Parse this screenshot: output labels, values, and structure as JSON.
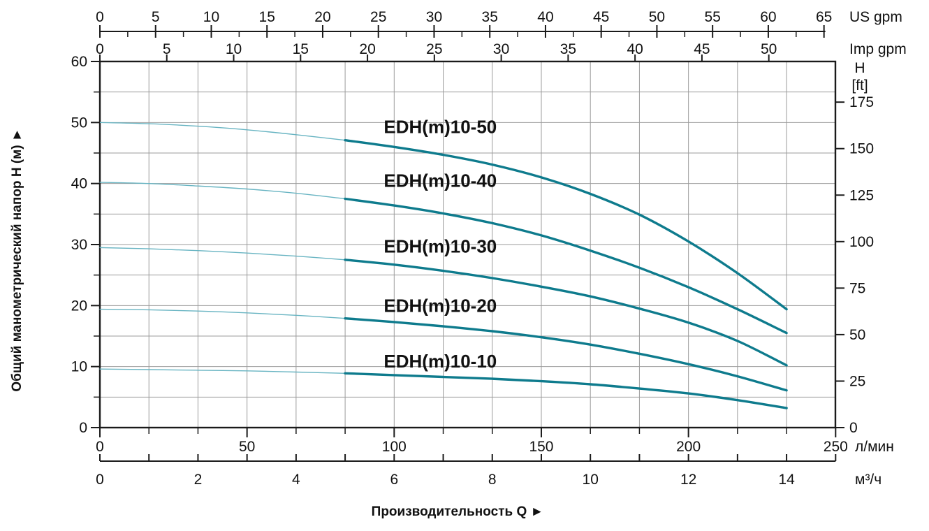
{
  "chart_data": {
    "type": "line",
    "title": "",
    "x_label": "Производительность Q",
    "x_label_arrow": "►",
    "y_label": "Общий манометрический напор H (м)",
    "y_label_arrow": "►",
    "x_m3h": [
      0,
      1,
      2,
      3,
      4,
      5,
      6,
      7,
      8,
      9,
      10,
      11,
      12,
      13,
      14
    ],
    "series": [
      {
        "name": "EDH(m)10-50",
        "label_h": 49.3,
        "values": [
          50,
          49.8,
          49.4,
          48.8,
          48.0,
          47.1,
          46.0,
          44.7,
          43.1,
          41.0,
          38.3,
          34.9,
          30.5,
          25.3,
          19.4
        ]
      },
      {
        "name": "EDH(m)10-40",
        "label_h": 40.5,
        "values": [
          40.2,
          40.0,
          39.6,
          39.1,
          38.4,
          37.5,
          36.4,
          35.1,
          33.5,
          31.5,
          29.0,
          26.2,
          23.0,
          19.4,
          15.5
        ]
      },
      {
        "name": "EDH(m)10-30",
        "label_h": 29.7,
        "values": [
          29.5,
          29.3,
          29.0,
          28.6,
          28.1,
          27.5,
          26.7,
          25.7,
          24.5,
          23.1,
          21.5,
          19.5,
          17.2,
          14.2,
          10.2
        ]
      },
      {
        "name": "EDH(m)10-20",
        "label_h": 20.0,
        "values": [
          19.4,
          19.3,
          19.1,
          18.8,
          18.4,
          17.9,
          17.3,
          16.6,
          15.8,
          14.8,
          13.6,
          12.1,
          10.4,
          8.4,
          6.1
        ]
      },
      {
        "name": "EDH(m)10-10",
        "label_h": 10.9,
        "values": [
          9.6,
          9.5,
          9.4,
          9.3,
          9.1,
          8.9,
          8.6,
          8.3,
          8.0,
          7.6,
          7.1,
          6.4,
          5.6,
          4.5,
          3.2
        ]
      }
    ],
    "label_x_m3h": 6.94,
    "thin_until_m3h": 5,
    "ylim": [
      0,
      60
    ],
    "xlim_lmin": [
      0,
      250
    ],
    "grid": {
      "x_step_m3h": 1,
      "y_step_m": 5
    },
    "axes": {
      "top_us": {
        "unit": "US gpm",
        "ticks": [
          0,
          5,
          10,
          15,
          20,
          25,
          30,
          35,
          40,
          45,
          50,
          55,
          60,
          65
        ],
        "minor_step": 2.5,
        "lmin_per_unit": 3.7854
      },
      "top_imp": {
        "unit": "Imp gpm",
        "ticks": [
          0,
          5,
          10,
          15,
          20,
          25,
          30,
          35,
          40,
          45,
          50
        ],
        "lmin_per_unit": 4.5461
      },
      "left_m": {
        "ticks": [
          0,
          10,
          20,
          30,
          40,
          50,
          60
        ],
        "minor_step": 5
      },
      "right_ft": {
        "unit_lines": [
          "H",
          "[ft]"
        ],
        "ticks": [
          0,
          25,
          50,
          75,
          100,
          125,
          150,
          175
        ],
        "m_per_unit": 0.3048
      },
      "bottom_lmin": {
        "unit": "л/мин",
        "ticks": [
          0,
          50,
          100,
          150,
          200,
          250
        ]
      },
      "bottom_m3h": {
        "unit": "м³/ч",
        "label_ticks": [
          0,
          2,
          4,
          6,
          8,
          10,
          12,
          14
        ],
        "tick_step": 1,
        "tick_max": 15
      }
    },
    "style": {
      "curve_color": "#0e7b8d",
      "curve_color_thin": "#68b4c2",
      "grid_color": "#9b9b9b",
      "axis_color": "#1a1a1a",
      "text_color": "#111111",
      "background": "#ffffff"
    }
  }
}
